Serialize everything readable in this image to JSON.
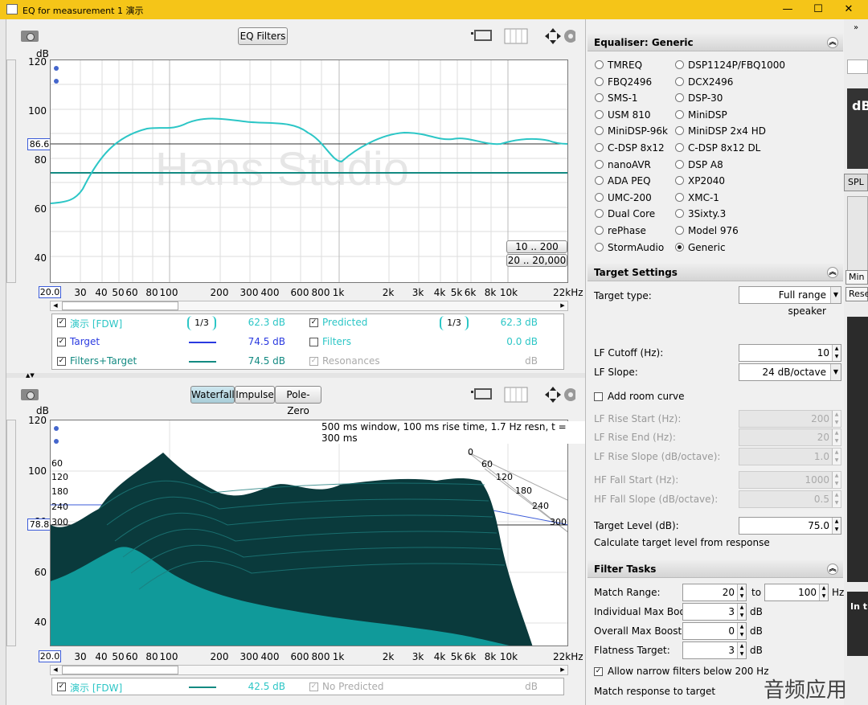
{
  "window": {
    "title": "EQ for measurement 1 演示",
    "min": "—",
    "max": "☐",
    "close": "✕"
  },
  "top": {
    "eq_filters_btn": "EQ Filters",
    "db_label": "dB",
    "yticks": [
      "120",
      "100",
      "80",
      "60",
      "40"
    ],
    "ybox": "86.6",
    "xticks": [
      "20.0",
      "30",
      "40",
      "50",
      "60",
      "80",
      "100",
      "200",
      "300",
      "400",
      "600",
      "800",
      "1k",
      "2k",
      "3k",
      "4k",
      "5k",
      "6k",
      "8k",
      "10k",
      "22kHz"
    ],
    "watermark": "Hans Studio",
    "range_btns": [
      "10 .. 200",
      "20 .. 20,000"
    ],
    "legend": [
      {
        "check": "✓",
        "name": "演示 [FDW]",
        "smooth": "1/3",
        "val": "62.3 dB",
        "color": "#2cc6c6"
      },
      {
        "check": "✓",
        "name": "Target",
        "val": "74.5 dB",
        "color": "#2a3ae0"
      },
      {
        "check": "✓",
        "name": "Filters+Target",
        "val": "74.5 dB",
        "color": "#138a82"
      },
      {
        "check": "✓",
        "name": "Predicted",
        "smooth": "1/3",
        "val": "62.3 dB",
        "color": "#2cc6c6"
      },
      {
        "check": "",
        "name": "Filters",
        "val": "0.0 dB",
        "color": "#2cc6c6"
      },
      {
        "check": "✓",
        "name": "Resonances",
        "val": "dB",
        "color": "#aaa"
      }
    ]
  },
  "bottom": {
    "tabs": [
      "Waterfall",
      "Impulse",
      "Pole-Zero"
    ],
    "db_label": "dB",
    "yticks": [
      "120",
      "100",
      "80",
      "60",
      "40"
    ],
    "ybox": "78.8",
    "window_info": "500 ms window, 100 ms rise time,  1.7 Hz resn, t = 300 ms",
    "depth_left": [
      "60",
      "120",
      "180",
      "240",
      "300"
    ],
    "depth_right": [
      "0",
      "60",
      "120",
      "180",
      "240",
      "300"
    ],
    "xticks": [
      "20.0",
      "30",
      "40",
      "50",
      "60",
      "80",
      "100",
      "200",
      "300",
      "400",
      "600",
      "800",
      "1k",
      "2k",
      "3k",
      "4k",
      "5k",
      "6k",
      "8k",
      "10k",
      "22kHz"
    ],
    "legend": [
      {
        "check": "✓",
        "name": "演示 [FDW]",
        "val": "42.5 dB"
      },
      {
        "check": "✓",
        "name": "No Predicted",
        "val": "dB"
      }
    ]
  },
  "eq": {
    "header": "Equaliser: Generic",
    "col1": [
      "TMREQ",
      "FBQ2496",
      "SMS-1",
      "USM 810",
      "MiniDSP-96k",
      "C-DSP 8x12",
      "nanoAVR",
      "ADA PEQ",
      "UMC-200",
      "Dual Core",
      "rePhase",
      "StormAudio"
    ],
    "col2": [
      "DSP1124P/FBQ1000",
      "DCX2496",
      "DSP-30",
      "MiniDSP",
      "MiniDSP 2x4 HD",
      "C-DSP 8x12 DL",
      "DSP A8",
      "XP2040",
      "XMC-1",
      "3Sixty.3",
      "Model 976",
      "Generic"
    ]
  },
  "target": {
    "header": "Target Settings",
    "type_label": "Target type:",
    "type_value": "Full range speaker",
    "lf_cutoff_label": "LF Cutoff (Hz):",
    "lf_cutoff": "10",
    "lf_slope_label": "LF Slope:",
    "lf_slope": "24 dB/octave",
    "room_curve": "Add room curve",
    "lf_rise_start_label": "LF Rise Start (Hz):",
    "lf_rise_start": "200",
    "lf_rise_end_label": "LF Rise End (Hz):",
    "lf_rise_end": "20",
    "lf_rise_slope_label": "LF Rise Slope (dB/octave):",
    "lf_rise_slope": "1.0",
    "hf_fall_start_label": "HF Fall Start (Hz):",
    "hf_fall_start": "1000",
    "hf_fall_slope_label": "HF Fall Slope (dB/octave):",
    "hf_fall_slope": "0.5",
    "level_label": "Target Level (dB):",
    "level": "75.0",
    "calc": "Calculate target level from response"
  },
  "tasks": {
    "header": "Filter Tasks",
    "match_range_label": "Match Range:",
    "match_lo": "20",
    "to": "to",
    "match_hi": "100",
    "hz": "Hz",
    "ind_boost_label": "Individual Max Boost:",
    "ind_boost": "3",
    "db1": "dB",
    "overall_boost_label": "Overall Max Boost:",
    "overall_boost": "0",
    "db2": "dB",
    "flatness_label": "Flatness Target:",
    "flatness": "3",
    "db3": "dB",
    "narrow": "Allow narrow filters below 200 Hz",
    "match_resp": "Match response to target"
  },
  "side": {
    "spl": "SPL",
    "db": "dB",
    "min": "Min",
    "rese": "Rese",
    "in_t": "In t"
  },
  "watermark2": "音频应用"
}
